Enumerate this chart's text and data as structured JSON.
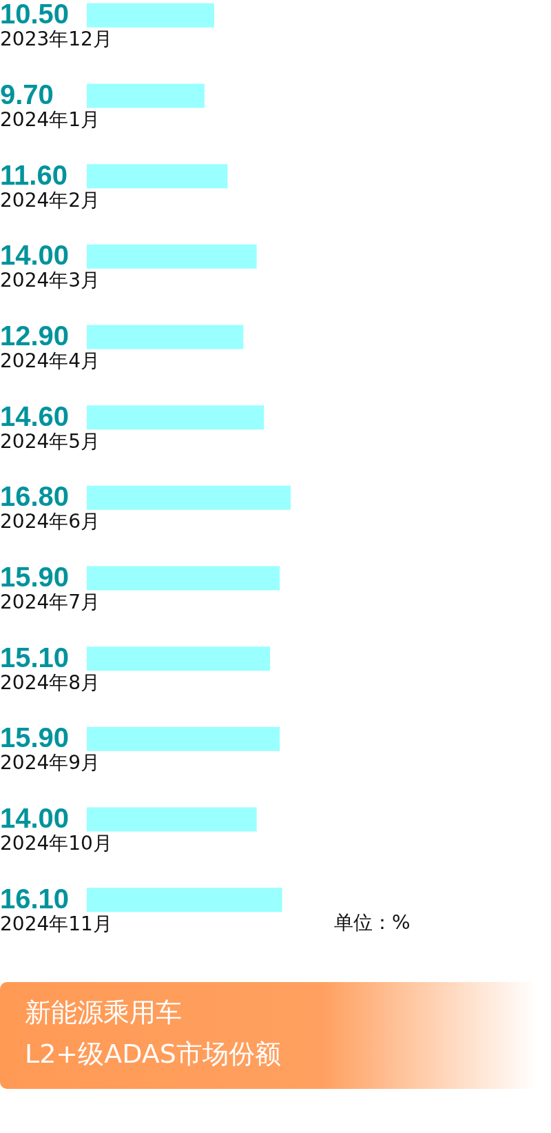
{
  "chart_data": {
    "type": "bar",
    "orientation": "horizontal",
    "title": "新能源乘用车\nL2+级ADAS市场份额",
    "categories": [
      "2023年12月",
      "2024年1月",
      "2024年2月",
      "2024年3月",
      "2024年4月",
      "2024年5月",
      "2024年6月",
      "2024年7月",
      "2024年8月",
      "2024年9月",
      "2024年10月",
      "2024年11月"
    ],
    "values": [
      10.5,
      9.7,
      11.6,
      14.0,
      12.9,
      14.6,
      16.8,
      15.9,
      15.1,
      15.9,
      14.0,
      16.1
    ],
    "value_labels": [
      "10.50",
      "9.70",
      "11.60",
      "14.00",
      "12.90",
      "14.60",
      "16.80",
      "15.90",
      "15.10",
      "15.90",
      "14.00",
      "16.10"
    ],
    "color": "#99ffff",
    "annotations": [
      "单位：%"
    ]
  }
}
